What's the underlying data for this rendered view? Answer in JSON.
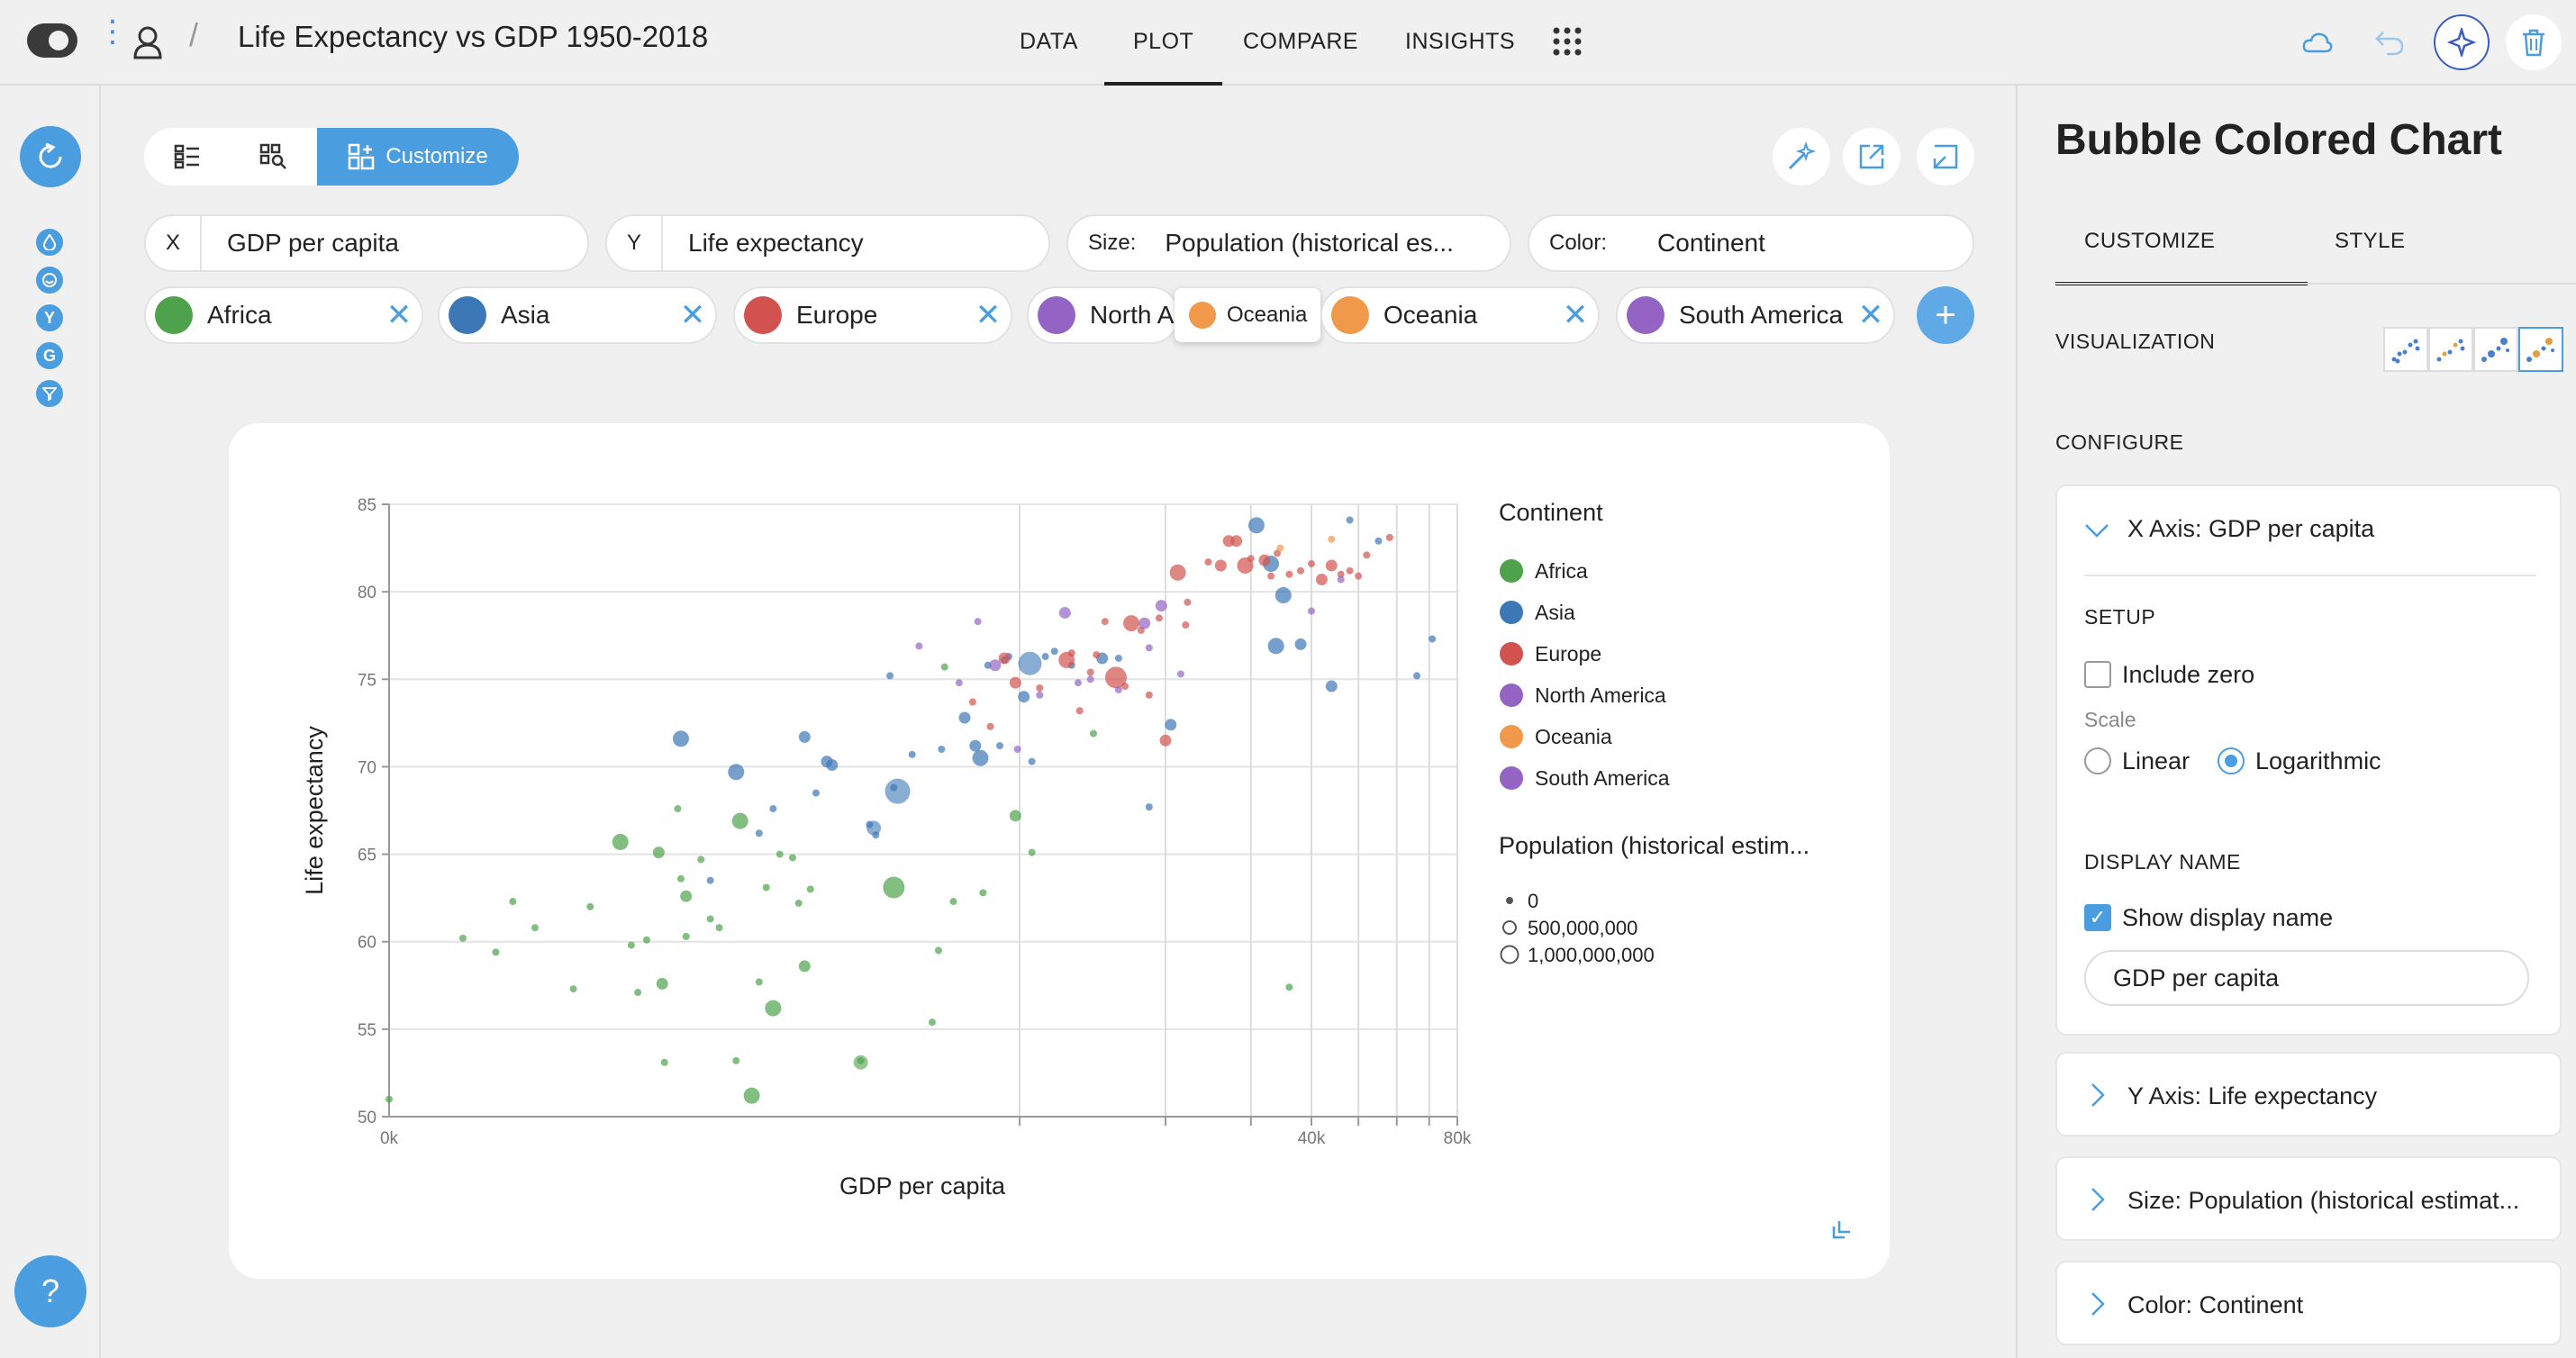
{
  "header": {
    "title": "Life Expectancy vs GDP 1950-2018",
    "nav": [
      "DATA",
      "PLOT",
      "COMPARE",
      "INSIGHTS"
    ],
    "active_nav": "PLOT"
  },
  "left_rail": {
    "badges": [
      "drop",
      "smile",
      "Y",
      "G",
      "filter"
    ]
  },
  "toolbar": {
    "customize_label": "Customize"
  },
  "encodings": {
    "x": {
      "label": "X",
      "value": "GDP per capita"
    },
    "y": {
      "label": "Y",
      "value": "Life expectancy"
    },
    "size": {
      "label": "Size:",
      "value": "Population (historical es..."
    },
    "color": {
      "label": "Color:",
      "value": "Continent"
    }
  },
  "filters": {
    "chips": [
      {
        "label": "Africa",
        "color": "#4ea24b"
      },
      {
        "label": "Asia",
        "color": "#3c78b5"
      },
      {
        "label": "Europe",
        "color": "#d2524f"
      },
      {
        "label": "North A",
        "color": "#9464c4"
      },
      {
        "label": "Oceania",
        "color": "#f0994b"
      },
      {
        "label": "South America",
        "color": "#9464c4"
      }
    ],
    "dragging": {
      "label": "Oceania",
      "color": "#f0994b"
    }
  },
  "chart_data": {
    "type": "scatter",
    "xlabel": "GDP per capita",
    "ylabel": "Life expectancy",
    "x_scale": "log",
    "x_tick_labels": [
      "0k",
      "40k",
      "80k"
    ],
    "y_ticks": [
      50,
      55,
      60,
      65,
      70,
      75,
      80,
      85
    ],
    "ylim": [
      50,
      85
    ],
    "legend": {
      "color_title": "Continent",
      "items": [
        {
          "label": "Africa",
          "color": "#4ea24b"
        },
        {
          "label": "Asia",
          "color": "#3c78b5"
        },
        {
          "label": "Europe",
          "color": "#d2524f"
        },
        {
          "label": "North America",
          "color": "#9464c4"
        },
        {
          "label": "Oceania",
          "color": "#f0994b"
        },
        {
          "label": "South America",
          "color": "#9464c4"
        }
      ],
      "size_title": "Population (historical estim...",
      "size_items": [
        "0",
        "500,000,000",
        "1,000,000,000"
      ]
    },
    "series": [
      {
        "name": "Africa",
        "color": "#4ea24b",
        "points": [
          [
            500,
            51
          ],
          [
            710,
            60.2
          ],
          [
            830,
            59.4
          ],
          [
            900,
            62.3
          ],
          [
            1000,
            60.8
          ],
          [
            1200,
            57.3
          ],
          [
            1300,
            62
          ],
          [
            1500,
            65.7
          ],
          [
            1580,
            59.8
          ],
          [
            1630,
            57.1
          ],
          [
            1700,
            60.1
          ],
          [
            1800,
            65.1
          ],
          [
            1830,
            57.6
          ],
          [
            1850,
            53.1
          ],
          [
            1970,
            67.6
          ],
          [
            2000,
            63.6
          ],
          [
            2050,
            62.6
          ],
          [
            2050,
            60.3
          ],
          [
            2200,
            64.7
          ],
          [
            2300,
            61.3
          ],
          [
            2400,
            60.8
          ],
          [
            2600,
            53.2
          ],
          [
            2650,
            66.9
          ],
          [
            2800,
            51.2
          ],
          [
            2900,
            57.7
          ],
          [
            3000,
            63.1
          ],
          [
            3100,
            56.2
          ],
          [
            3200,
            65
          ],
          [
            3400,
            64.8
          ],
          [
            3500,
            62.2
          ],
          [
            3600,
            58.6
          ],
          [
            3700,
            63
          ],
          [
            4700,
            53.2
          ],
          [
            5500,
            63.1
          ],
          [
            6600,
            55.4
          ],
          [
            6800,
            59.5
          ],
          [
            7000,
            75.7
          ],
          [
            7300,
            62.3
          ],
          [
            8400,
            62.8
          ],
          [
            9800,
            67.2
          ],
          [
            10600,
            65.1
          ],
          [
            14200,
            71.9
          ],
          [
            36000,
            57.4
          ]
        ]
      },
      {
        "name": "Asia",
        "color": "#3c78b5",
        "points": [
          [
            2000,
            71.6
          ],
          [
            2300,
            63.5
          ],
          [
            2600,
            69.7
          ],
          [
            2900,
            66.2
          ],
          [
            3100,
            67.6
          ],
          [
            3600,
            71.7
          ],
          [
            3800,
            68.5
          ],
          [
            4000,
            70.3
          ],
          [
            4100,
            70.1
          ],
          [
            4900,
            66.7
          ],
          [
            5050,
            66.1
          ],
          [
            5400,
            75.2
          ],
          [
            5500,
            68.8
          ],
          [
            6000,
            70.7
          ],
          [
            6900,
            71
          ],
          [
            7700,
            72.8
          ],
          [
            8100,
            71.2
          ],
          [
            8300,
            70.5
          ],
          [
            8600,
            75.8
          ],
          [
            9100,
            71.2
          ],
          [
            9300,
            76.1
          ],
          [
            9500,
            76.3
          ],
          [
            10200,
            74
          ],
          [
            10600,
            70.3
          ],
          [
            11800,
            76.6
          ],
          [
            11300,
            76.3
          ],
          [
            12800,
            75.8
          ],
          [
            14800,
            76.2
          ],
          [
            16000,
            76.2
          ],
          [
            18500,
            67.7
          ],
          [
            20500,
            72.4
          ],
          [
            30800,
            83.8
          ],
          [
            33000,
            81.6
          ],
          [
            33800,
            76.9
          ],
          [
            35000,
            79.8
          ],
          [
            38000,
            77
          ],
          [
            44000,
            74.6
          ],
          [
            48000,
            84.1
          ],
          [
            55000,
            82.9
          ],
          [
            66000,
            75.2
          ],
          [
            71000,
            77.3
          ]
        ]
      },
      {
        "name": "Europe",
        "color": "#d2524f",
        "points": [
          [
            8000,
            73.7
          ],
          [
            8700,
            72.3
          ],
          [
            9300,
            76.2
          ],
          [
            9800,
            74.8
          ],
          [
            11000,
            74.5
          ],
          [
            12500,
            76.1
          ],
          [
            12800,
            76.5
          ],
          [
            13300,
            73.2
          ],
          [
            14000,
            75.4
          ],
          [
            14400,
            76.4
          ],
          [
            15000,
            78.3
          ],
          [
            15800,
            75.1
          ],
          [
            16500,
            74.6
          ],
          [
            17000,
            78.2
          ],
          [
            17800,
            77.8
          ],
          [
            18500,
            74.1
          ],
          [
            19400,
            78.5
          ],
          [
            20000,
            71.5
          ],
          [
            21200,
            81.1
          ],
          [
            22000,
            78.1
          ],
          [
            22200,
            79.4
          ],
          [
            24500,
            81.7
          ],
          [
            26000,
            81.5
          ],
          [
            27000,
            82.9
          ],
          [
            28000,
            82.9
          ],
          [
            29200,
            81.5
          ],
          [
            30000,
            81.9
          ],
          [
            32000,
            81.8
          ],
          [
            33000,
            80.9
          ],
          [
            34000,
            82.2
          ],
          [
            36000,
            81
          ],
          [
            38000,
            81.2
          ],
          [
            40000,
            81.6
          ],
          [
            42000,
            80.7
          ],
          [
            44000,
            81.5
          ],
          [
            46000,
            81
          ],
          [
            48000,
            81.2
          ],
          [
            50000,
            80.9
          ],
          [
            52000,
            82.1
          ],
          [
            58000,
            83.1
          ]
        ]
      },
      {
        "name": "North America",
        "color": "#9464c4",
        "points": [
          [
            7500,
            74.8
          ],
          [
            8200,
            78.3
          ],
          [
            9900,
            71
          ],
          [
            11000,
            74.1
          ],
          [
            12400,
            78.8
          ],
          [
            14000,
            75
          ],
          [
            16000,
            74.4
          ],
          [
            18500,
            76.8
          ],
          [
            19600,
            79.2
          ],
          [
            21500,
            75.3
          ],
          [
            40000,
            78.9
          ],
          [
            46000,
            80.7
          ]
        ]
      },
      {
        "name": "Oceania",
        "color": "#f0994b",
        "points": [
          [
            34500,
            82.5
          ],
          [
            44000,
            83
          ]
        ]
      },
      {
        "name": "South America",
        "color": "#9464c4",
        "points": [
          [
            6200,
            76.9
          ],
          [
            8900,
            75.8
          ],
          [
            13200,
            74.8
          ],
          [
            18100,
            78.2
          ]
        ]
      }
    ]
  },
  "right_panel": {
    "title": "Bubble Colored Chart",
    "tabs": [
      "CUSTOMIZE",
      "STYLE"
    ],
    "visualization_label": "VISUALIZATION",
    "configure_label": "CONFIGURE",
    "x_axis_title": "X Axis: GDP per capita",
    "setup_label": "SETUP",
    "include_zero_label": "Include zero",
    "scale_label": "Scale",
    "scale_options": [
      "Linear",
      "Logarithmic"
    ],
    "scale_selected": "Logarithmic",
    "display_name_label": "DISPLAY NAME",
    "show_display_name_label": "Show display name",
    "display_name_value": "GDP per capita",
    "collapsed_sections": [
      "Y Axis: Life expectancy",
      "Size: Population (historical estimat...",
      "Color: Continent"
    ]
  },
  "help": {
    "label": "?"
  }
}
